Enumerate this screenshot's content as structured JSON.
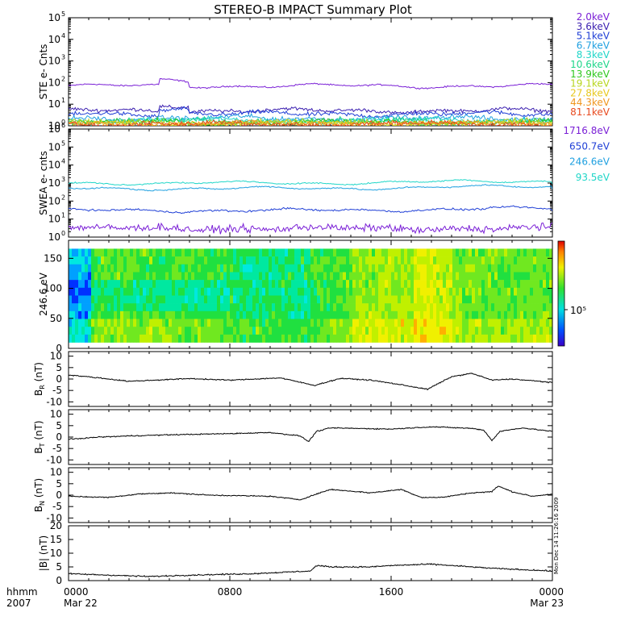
{
  "chart_data": {
    "title": "STEREO-B IMPACT Summary Plot",
    "type": "line",
    "time_axis": {
      "row1_label": "hhmm",
      "row2_label": "2007",
      "ticks": [
        {
          "hour": 0,
          "label": "0000",
          "date": "Mar 22"
        },
        {
          "hour": 8,
          "label": "0800",
          "date": ""
        },
        {
          "hour": 16,
          "label": "1600",
          "date": ""
        },
        {
          "hour": 24,
          "label": "0000",
          "date": "Mar 23"
        }
      ],
      "range_hours": [
        0,
        24
      ]
    },
    "side_note": "Mon Dec 14 11:26:16 2009",
    "panels": [
      {
        "id": "ste",
        "type": "line",
        "ylabel": "STE e- Cnts",
        "scale": "log",
        "ylim": [
          1,
          100000
        ],
        "series": [
          {
            "name": "2.0keV",
            "color": "#7a1fd6",
            "level": 70,
            "noise": 0.05
          },
          {
            "name": "3.6keV",
            "color": "#3b1fb0",
            "level": 5.0,
            "noise": 0.12
          },
          {
            "name": "5.1keV",
            "color": "#1f3fd6",
            "level": 3.5,
            "noise": 0.14
          },
          {
            "name": "6.7keV",
            "color": "#1fa0e0",
            "level": 2.2,
            "noise": 0.16
          },
          {
            "name": "8.3keV",
            "color": "#1fd6c8",
            "level": 1.8,
            "noise": 0.17
          },
          {
            "name": "10.6keV",
            "color": "#1fd68a",
            "level": 1.6,
            "noise": 0.18
          },
          {
            "name": "13.9keV",
            "color": "#2fc81f",
            "level": 1.45,
            "noise": 0.18
          },
          {
            "name": "19.1keV",
            "color": "#b8d61f",
            "level": 1.35,
            "noise": 0.18
          },
          {
            "name": "27.8keV",
            "color": "#e8c81f",
            "level": 1.3,
            "noise": 0.18
          },
          {
            "name": "44.3keV",
            "color": "#f0961f",
            "level": 1.25,
            "noise": 0.18
          },
          {
            "name": "81.1keV",
            "color": "#e84a1f",
            "level": 1.2,
            "noise": 0.18
          }
        ]
      },
      {
        "id": "swea",
        "type": "line",
        "ylabel": "SWEA e- cnts",
        "scale": "log",
        "ylim": [
          1,
          1000000
        ],
        "series": [
          {
            "name": "1716.8eV",
            "color": "#7a1fd6",
            "level": 3,
            "noise": 0.3
          },
          {
            "name": "650.7eV",
            "color": "#1f3fd6",
            "level": 30,
            "noise": 0.08
          },
          {
            "name": "246.6eV",
            "color": "#1fa0e0",
            "level": 500,
            "noise": 0.05
          },
          {
            "name": "93.5eV",
            "color": "#1fd6c8",
            "level": 1000,
            "noise": 0.05
          }
        ]
      },
      {
        "id": "pad",
        "type": "heatmap",
        "ylabel": "246.6 eV",
        "ylim": [
          0,
          180
        ],
        "yticks": [
          0,
          50,
          100,
          150
        ],
        "colorbar_label": "10⁵"
      },
      {
        "id": "br",
        "type": "line",
        "ylabel_main": "B",
        "ylabel_sub": "R",
        "ylabel_unit": " (nT)",
        "ylim": [
          -12,
          12
        ],
        "yticks": [
          -10,
          -5,
          0,
          5,
          10
        ],
        "series": [
          {
            "name": "",
            "color": "#000000"
          }
        ],
        "knots": [
          [
            0,
            1.8
          ],
          [
            1.5,
            0.5
          ],
          [
            3,
            -1.0
          ],
          [
            6,
            0.2
          ],
          [
            8,
            -0.5
          ],
          [
            10.5,
            0.5
          ],
          [
            12.2,
            -2.8
          ],
          [
            13.5,
            0.3
          ],
          [
            15,
            -0.5
          ],
          [
            16.5,
            -2.5
          ],
          [
            17.8,
            -4.5
          ],
          [
            19,
            1.0
          ],
          [
            20,
            2.5
          ],
          [
            21,
            -0.5
          ],
          [
            22,
            0.0
          ],
          [
            24,
            -1.5
          ]
        ]
      },
      {
        "id": "bt",
        "type": "line",
        "ylabel_main": "B",
        "ylabel_sub": "T",
        "ylabel_unit": " (nT)",
        "ylim": [
          -12,
          12
        ],
        "yticks": [
          -10,
          -5,
          0,
          5,
          10
        ],
        "series": [
          {
            "name": "",
            "color": "#000000"
          }
        ],
        "knots": [
          [
            0,
            -1.0
          ],
          [
            1.5,
            0.0
          ],
          [
            3,
            0.5
          ],
          [
            5,
            1.0
          ],
          [
            8,
            1.5
          ],
          [
            10,
            2.0
          ],
          [
            11.5,
            0.5
          ],
          [
            11.9,
            -2.0
          ],
          [
            12.3,
            2.5
          ],
          [
            13,
            4.0
          ],
          [
            16,
            3.5
          ],
          [
            18,
            4.5
          ],
          [
            20,
            3.8
          ],
          [
            20.6,
            3.0
          ],
          [
            21,
            -1.5
          ],
          [
            21.4,
            2.5
          ],
          [
            22.5,
            4.0
          ],
          [
            24,
            2.5
          ]
        ]
      },
      {
        "id": "bn",
        "type": "line",
        "ylabel_main": "B",
        "ylabel_sub": "N",
        "ylabel_unit": " (nT)",
        "ylim": [
          -12,
          12
        ],
        "yticks": [
          -10,
          -5,
          0,
          5,
          10
        ],
        "series": [
          {
            "name": "",
            "color": "#000000"
          }
        ],
        "knots": [
          [
            0,
            -0.5
          ],
          [
            2,
            -1.0
          ],
          [
            3.5,
            0.5
          ],
          [
            5,
            1.0
          ],
          [
            7,
            0.0
          ],
          [
            10,
            -0.5
          ],
          [
            11.5,
            -2.0
          ],
          [
            12.3,
            0.5
          ],
          [
            13,
            2.5
          ],
          [
            15,
            1.0
          ],
          [
            16.5,
            2.5
          ],
          [
            17.5,
            -1.0
          ],
          [
            18.5,
            -1.0
          ],
          [
            20,
            1.0
          ],
          [
            21,
            1.5
          ],
          [
            21.3,
            4.0
          ],
          [
            22,
            1.5
          ],
          [
            23,
            -0.5
          ],
          [
            24,
            0.5
          ]
        ]
      },
      {
        "id": "bmag",
        "type": "line",
        "ylabel_main": "|B| (nT)",
        "ylim": [
          0,
          20
        ],
        "yticks": [
          0,
          5,
          10,
          15,
          20
        ],
        "series": [
          {
            "name": "",
            "color": "#000000"
          }
        ],
        "knots": [
          [
            0,
            2.5
          ],
          [
            2,
            2.0
          ],
          [
            4,
            1.5
          ],
          [
            6,
            2.0
          ],
          [
            9,
            2.5
          ],
          [
            12,
            3.5
          ],
          [
            12.3,
            5.5
          ],
          [
            13,
            5.0
          ],
          [
            15,
            5.0
          ],
          [
            16,
            5.5
          ],
          [
            18,
            6.0
          ],
          [
            19,
            5.5
          ],
          [
            21,
            4.5
          ],
          [
            22.5,
            4.0
          ],
          [
            24,
            3.5
          ]
        ]
      }
    ]
  }
}
